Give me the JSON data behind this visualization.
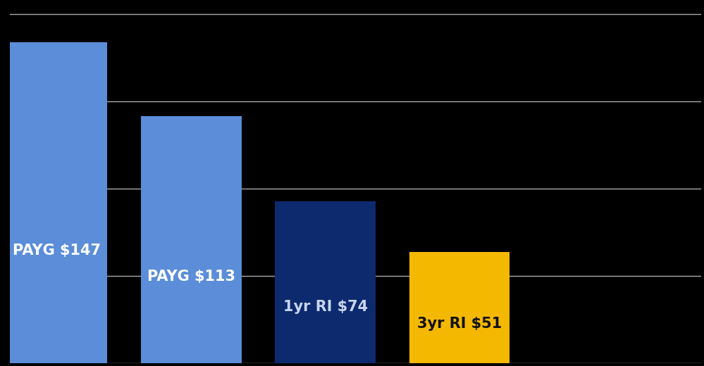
{
  "bars": [
    {
      "label": "PAYG $147",
      "value": 147,
      "color": "#5b8dd9",
      "text_color": "#ffffff"
    },
    {
      "label": "PAYG $113",
      "value": 113,
      "color": "#5b8dd9",
      "text_color": "#ffffff"
    },
    {
      "label": "1yr RI $74",
      "value": 74,
      "color": "#0d2a6e",
      "text_color": "#c8d4f0"
    },
    {
      "label": "3yr RI $51",
      "value": 51,
      "color": "#f5b800",
      "text_color": "#111111"
    }
  ],
  "background_color": "#000000",
  "grid_color": "#aaaaaa",
  "ylim": [
    0,
    165
  ],
  "bar_width": 0.75,
  "x_positions": [
    0,
    1,
    2,
    3
  ],
  "figsize": [
    9.99,
    5.2
  ],
  "dpi": 100,
  "label_fontsize": 15,
  "label_fontweight": "bold",
  "grid_values": [
    40,
    80,
    120,
    160
  ],
  "xlim": [
    -0.35,
    4.8
  ]
}
